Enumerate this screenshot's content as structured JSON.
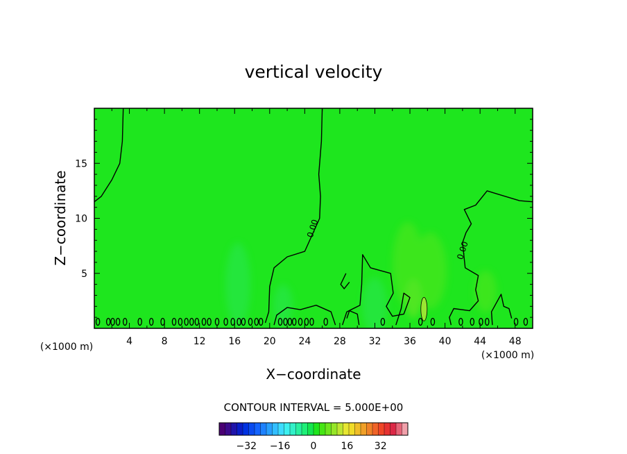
{
  "chart_data": {
    "type": "heatmap",
    "title": "vertical velocity",
    "xlabel": "X−coordinate",
    "ylabel": "Z−coordinate",
    "x_unit": "(×1000 m)",
    "y_unit": "(×1000 m)",
    "xlim": [
      0,
      50
    ],
    "ylim": [
      0,
      20
    ],
    "x_ticks": [
      4,
      8,
      12,
      16,
      20,
      24,
      28,
      32,
      36,
      40,
      44,
      48
    ],
    "y_ticks": [
      5,
      10,
      15
    ],
    "background_color": "#1ee61e",
    "contour_interval": "CONTOUR INTERVAL = 5.000E+00",
    "contour_labels": [
      {
        "text": "0.00",
        "x": 25.2,
        "z": 9
      },
      {
        "text": "0.00",
        "x": 42.3,
        "z": 7
      }
    ],
    "zero_contours": [
      [
        [
          0,
          11.5
        ],
        [
          0.8,
          12
        ],
        [
          2,
          13.5
        ],
        [
          2.9,
          15
        ],
        [
          3.2,
          17
        ],
        [
          3.3,
          20
        ]
      ],
      [
        [
          26,
          20
        ],
        [
          25.9,
          17
        ],
        [
          25.6,
          14
        ],
        [
          25.8,
          12
        ],
        [
          25.7,
          10
        ],
        [
          24,
          7
        ],
        [
          22,
          6.5
        ],
        [
          20.5,
          5.5
        ],
        [
          20,
          3.8
        ],
        [
          19.9,
          1.5
        ],
        [
          19.5,
          0.5
        ]
      ],
      [
        [
          50,
          11.5
        ],
        [
          48.5,
          11.6
        ],
        [
          46,
          12.2
        ],
        [
          44.8,
          12.5
        ],
        [
          43.5,
          11.2
        ],
        [
          42.2,
          10.8
        ],
        [
          43,
          9.5
        ],
        [
          42.4,
          8.7
        ],
        [
          42,
          7.8
        ],
        [
          42.3,
          5.5
        ],
        [
          43.8,
          4.8
        ],
        [
          43.5,
          3.5
        ],
        [
          43.8,
          2.5
        ],
        [
          42.8,
          1.6
        ],
        [
          41,
          1.8
        ],
        [
          40.5,
          1
        ],
        [
          40.7,
          0.3
        ]
      ],
      [
        [
          27.5,
          0.3
        ],
        [
          27,
          1.5
        ],
        [
          25.3,
          2.1
        ],
        [
          23.5,
          1.7
        ],
        [
          22,
          1.9
        ],
        [
          20.8,
          1.2
        ],
        [
          20.5,
          0.3
        ]
      ],
      [
        [
          28.3,
          0.3
        ],
        [
          28.8,
          1.5
        ],
        [
          30.3,
          2.1
        ],
        [
          30.5,
          4
        ],
        [
          30.6,
          6.7
        ],
        [
          31.5,
          5.5
        ],
        [
          33.8,
          5
        ],
        [
          34.1,
          3.2
        ],
        [
          33.3,
          2
        ],
        [
          34,
          1.1
        ],
        [
          35.3,
          1.3
        ],
        [
          36,
          2.8
        ],
        [
          35.3,
          3.2
        ],
        [
          35,
          1.8
        ],
        [
          34.4,
          0.3
        ]
      ],
      [
        [
          30.2,
          0.3
        ],
        [
          30,
          1.3
        ],
        [
          29.1,
          1.6
        ],
        [
          28.8,
          0.9
        ]
      ],
      [
        [
          29.1,
          4.2
        ],
        [
          28.5,
          3.6
        ],
        [
          28.1,
          4
        ],
        [
          28.7,
          5
        ]
      ],
      [
        [
          45.4,
          0.3
        ],
        [
          45.3,
          1.5
        ],
        [
          46.4,
          3.1
        ],
        [
          46.7,
          2
        ],
        [
          47.3,
          1.8
        ],
        [
          47.6,
          0.9
        ]
      ]
    ],
    "small_contours_z": 0.6,
    "small_contours_x": [
      0.4,
      1.6,
      2.1,
      2.7,
      3.5,
      5.2,
      6.5,
      7.8,
      9.1,
      9.8,
      10.5,
      11.1,
      11.7,
      12.5,
      13.1,
      14,
      15,
      15.8,
      16.5,
      17,
      17.8,
      18.5,
      19,
      21.2,
      21.8,
      22.3,
      22.8,
      23.5,
      24.2,
      24.8,
      26.4,
      32.9,
      37.2,
      38.6,
      41.8,
      43.1,
      44.1,
      44.8,
      48.1,
      49.2
    ],
    "positive_cell": {
      "x": 37.6,
      "z": 1.75,
      "value": 5
    },
    "colorbar": {
      "ticks": [
        "−32",
        "−16",
        "0",
        "16",
        "32"
      ],
      "tick_values": [
        -32,
        -16,
        0,
        16,
        32
      ],
      "range": [
        -45,
        45
      ],
      "colors": [
        "#4a0073",
        "#3c0a8c",
        "#2014aa",
        "#0a1ec8",
        "#0032e1",
        "#0a4bf0",
        "#1464ff",
        "#1e82ff",
        "#28a0ff",
        "#32beff",
        "#3cdcff",
        "#3cf0f0",
        "#32f0c8",
        "#28f0a0",
        "#1ef078",
        "#14e650",
        "#1ee61e",
        "#46e614",
        "#6ee61e",
        "#96e628",
        "#bee632",
        "#e6e632",
        "#f0dc28",
        "#f0be28",
        "#f0a028",
        "#f08228",
        "#f06428",
        "#f04628",
        "#e63232",
        "#dc2846",
        "#e66478",
        "#f0a0aa"
      ]
    }
  }
}
